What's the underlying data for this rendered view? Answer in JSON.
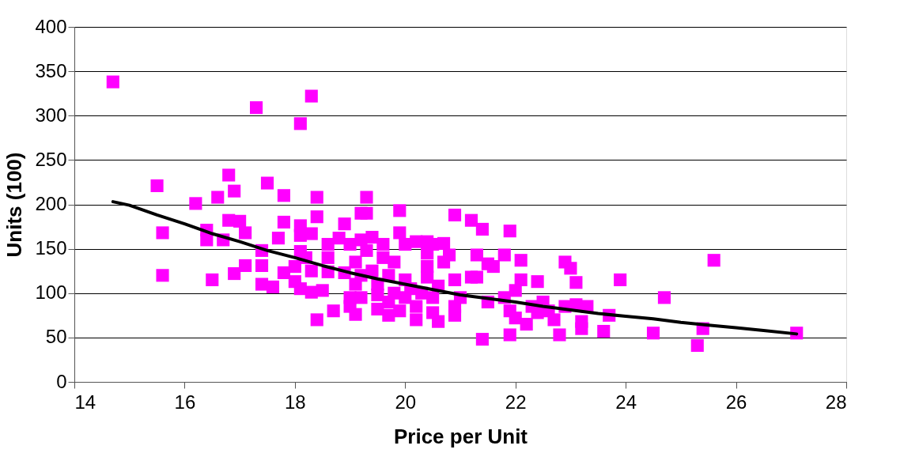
{
  "chart_data": {
    "type": "scatter",
    "xlabel": "Price per Unit",
    "ylabel": "Units (100)",
    "xlim": [
      14,
      28
    ],
    "xticks": [
      14,
      16,
      18,
      20,
      22,
      24,
      26,
      28
    ],
    "ylim": [
      0,
      400
    ],
    "yticks": [
      0,
      50,
      100,
      150,
      200,
      250,
      300,
      350,
      400
    ],
    "grid": "y",
    "series": [
      {
        "color": "#ff00ff",
        "marker": "square",
        "x": [
          14.7,
          15.5,
          15.6,
          15.6,
          16.2,
          16.4,
          16.4,
          16.5,
          16.6,
          16.7,
          16.8,
          16.8,
          16.9,
          16.9,
          17.0,
          17.1,
          17.1,
          17.3,
          17.4,
          17.4,
          17.4,
          17.5,
          17.6,
          17.7,
          17.8,
          17.8,
          17.8,
          18.0,
          18.0,
          18.1,
          18.1,
          18.1,
          18.1,
          18.1,
          18.2,
          18.3,
          18.3,
          18.3,
          18.3,
          18.4,
          18.4,
          18.4,
          18.5,
          18.6,
          18.6,
          18.6,
          18.7,
          18.8,
          18.9,
          18.9,
          19.0,
          19.0,
          19.0,
          19.1,
          19.1,
          19.1,
          19.2,
          19.2,
          19.2,
          19.2,
          19.3,
          19.3,
          19.3,
          19.4,
          19.4,
          19.5,
          19.5,
          19.5,
          19.6,
          19.6,
          19.7,
          19.7,
          19.7,
          19.8,
          19.8,
          19.9,
          19.9,
          19.9,
          20.0,
          20.0,
          20.0,
          20.1,
          20.2,
          20.2,
          20.2,
          20.3,
          20.4,
          20.4,
          20.4,
          20.4,
          20.5,
          20.5,
          20.5,
          20.6,
          20.6,
          20.7,
          20.7,
          20.8,
          20.9,
          20.9,
          20.9,
          20.9,
          21.0,
          21.2,
          21.2,
          21.3,
          21.3,
          21.4,
          21.4,
          21.5,
          21.5,
          21.6,
          21.8,
          21.8,
          21.9,
          21.9,
          21.9,
          22.0,
          22.0,
          22.1,
          22.1,
          22.2,
          22.3,
          22.4,
          22.4,
          22.5,
          22.6,
          22.7,
          22.8,
          22.9,
          22.9,
          23.0,
          23.1,
          23.1,
          23.2,
          23.2,
          23.3,
          23.6,
          23.7,
          23.9,
          24.5,
          24.7,
          25.3,
          25.4,
          25.6,
          27.1
        ],
        "values": [
          338,
          221,
          168,
          120,
          201,
          171,
          160,
          115,
          208,
          160,
          233,
          182,
          215,
          122,
          181,
          168,
          131,
          309,
          131,
          110,
          148,
          224,
          107,
          162,
          210,
          180,
          123,
          113,
          130,
          291,
          176,
          165,
          147,
          105,
          140,
          322,
          167,
          125,
          101,
          186,
          208,
          70,
          103,
          155,
          140,
          124,
          80,
          162,
          123,
          178,
          155,
          95,
          85,
          76,
          110,
          135,
          190,
          160,
          120,
          95,
          208,
          190,
          148,
          125,
          163,
          110,
          98,
          82,
          155,
          140,
          120,
          90,
          75,
          135,
          100,
          193,
          168,
          80,
          155,
          115,
          95,
          105,
          158,
          85,
          70,
          100,
          158,
          145,
          130,
          118,
          155,
          95,
          78,
          68,
          108,
          156,
          135,
          143,
          188,
          115,
          85,
          75,
          95,
          182,
          118,
          143,
          118,
          172,
          48,
          133,
          90,
          130,
          95,
          143,
          170,
          53,
          80,
          103,
          72,
          137,
          115,
          65,
          85,
          113,
          78,
          90,
          80,
          70,
          53,
          135,
          85,
          128,
          112,
          87,
          68,
          60,
          85,
          57,
          75,
          115,
          55,
          95,
          41,
          60,
          137,
          55
        ]
      },
      {
        "type": "line",
        "color": "#000000",
        "marker": "none",
        "x": [
          14.7,
          15,
          15.5,
          16,
          16.5,
          17,
          17.5,
          18,
          18.5,
          19,
          19.5,
          20,
          20.5,
          21,
          21.5,
          22,
          22.5,
          23,
          23.5,
          24,
          24.5,
          25,
          25.5,
          26,
          26.5,
          27.1
        ],
        "values": [
          203,
          199,
          188,
          178,
          167,
          158,
          148,
          140,
          131,
          123,
          116,
          110,
          104,
          98,
          94,
          90,
          85,
          81,
          77,
          74,
          71,
          67,
          64,
          61,
          58,
          54
        ]
      }
    ]
  }
}
